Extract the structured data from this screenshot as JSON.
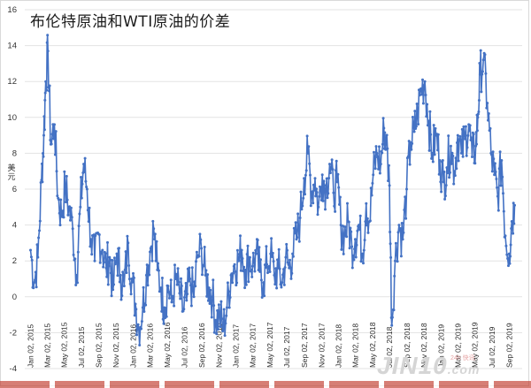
{
  "chart_data": {
    "type": "line",
    "title": "布伦特原油和WTI原油的价差",
    "ylabel": "美元",
    "xlabel": "",
    "ylim": [
      -4,
      16
    ],
    "y_ticks": [
      -4,
      -2,
      0,
      2,
      4,
      6,
      8,
      10,
      12,
      14,
      16
    ],
    "x_tick_labels": [
      "Jan 02, 2015",
      "Mar 02, 2015",
      "May 02, 2015",
      "Jul 02, 2015",
      "Sep 02, 2015",
      "Nov 02, 2015",
      "Jan 02, 2016",
      "Mar 02, 2016",
      "May 02, 2016",
      "Jul 02, 2016",
      "Sep 02, 2016",
      "Nov 02, 2016",
      "Jan 02, 2017",
      "Mar 02, 2017",
      "May 02, 2017",
      "Jul 02, 2017",
      "Sep 02, 2017",
      "Nov 02, 2017",
      "Jan 02, 2018",
      "Mar 02, 2018",
      "May 02, 2018",
      "Jul 02, 2018",
      "Sep 02, 2018",
      "Nov 02, 2018",
      "Jan 02, 2019",
      "Mar 02, 2019",
      "May 02, 2019",
      "Jul 02, 2019",
      "Sep 02, 2019"
    ],
    "grid": true,
    "legend": "none",
    "line_color": "#4472c4",
    "series": [
      {
        "x": [
          "2015-01-02",
          "2015-01-15",
          "2015-01-28",
          "2015-02-10",
          "2015-02-18",
          "2015-02-25",
          "2015-03-05",
          "2015-03-15",
          "2015-03-28",
          "2015-04-10",
          "2015-04-22",
          "2015-05-05",
          "2015-05-18",
          "2015-06-01",
          "2015-06-15",
          "2015-06-28",
          "2015-07-10",
          "2015-07-22",
          "2015-08-05",
          "2015-08-18",
          "2015-09-01",
          "2015-09-15",
          "2015-09-28",
          "2015-10-10",
          "2015-10-22",
          "2015-11-05",
          "2015-11-18",
          "2015-12-01",
          "2015-12-15",
          "2015-12-28",
          "2016-01-10",
          "2016-01-22",
          "2016-02-05",
          "2016-02-18",
          "2016-03-02",
          "2016-03-15",
          "2016-03-28",
          "2016-04-10",
          "2016-04-22",
          "2016-05-05",
          "2016-05-18",
          "2016-06-01",
          "2016-06-15",
          "2016-06-28",
          "2016-07-10",
          "2016-07-22",
          "2016-08-05",
          "2016-08-18",
          "2016-09-01",
          "2016-09-15",
          "2016-09-28",
          "2016-10-10",
          "2016-10-22",
          "2016-11-05",
          "2016-11-18",
          "2016-12-01",
          "2016-12-15",
          "2016-12-28",
          "2017-01-10",
          "2017-01-22",
          "2017-02-05",
          "2017-02-18",
          "2017-03-02",
          "2017-03-15",
          "2017-03-28",
          "2017-04-10",
          "2017-04-22",
          "2017-05-05",
          "2017-05-18",
          "2017-06-01",
          "2017-06-15",
          "2017-06-28",
          "2017-07-10",
          "2017-07-22",
          "2017-08-05",
          "2017-08-18",
          "2017-09-01",
          "2017-09-15",
          "2017-09-28",
          "2017-10-10",
          "2017-10-22",
          "2017-11-05",
          "2017-11-18",
          "2017-12-01",
          "2017-12-15",
          "2017-12-28",
          "2018-01-10",
          "2018-01-22",
          "2018-02-05",
          "2018-02-18",
          "2018-03-02",
          "2018-03-15",
          "2018-03-28",
          "2018-04-10",
          "2018-04-22",
          "2018-05-05",
          "2018-05-18",
          "2018-06-01",
          "2018-06-12",
          "2018-06-20",
          "2018-07-02",
          "2018-07-10",
          "2018-07-22",
          "2018-08-05",
          "2018-08-18",
          "2018-09-01",
          "2018-09-15",
          "2018-09-28",
          "2018-10-10",
          "2018-10-22",
          "2018-11-05",
          "2018-11-18",
          "2018-12-01",
          "2018-12-15",
          "2018-12-28",
          "2019-01-10",
          "2019-01-22",
          "2019-02-05",
          "2019-02-18",
          "2019-03-02",
          "2019-03-15",
          "2019-03-28",
          "2019-04-10",
          "2019-04-22",
          "2019-05-05",
          "2019-05-12",
          "2019-05-20",
          "2019-06-01",
          "2019-06-15",
          "2019-06-28",
          "2019-07-10",
          "2019-07-22",
          "2019-08-05",
          "2019-08-18",
          "2019-09-01",
          "2019-09-10",
          "2019-09-20"
        ],
        "values": [
          2.6,
          0.8,
          2.2,
          6.5,
          9.0,
          12.0,
          13.7,
          8.5,
          9.6,
          5.5,
          4.5,
          6.2,
          5.0,
          3.8,
          1.2,
          5.0,
          7.4,
          6.0,
          3.2,
          2.0,
          3.5,
          2.6,
          1.6,
          2.2,
          0.4,
          2.4,
          1.2,
          0.6,
          3.0,
          1.0,
          -0.4,
          -1.8,
          -0.6,
          1.2,
          2.5,
          3.8,
          1.5,
          0.5,
          -0.6,
          0.6,
          -0.3,
          1.0,
          0.2,
          -0.8,
          -0.2,
          1.0,
          0.0,
          2.2,
          2.7,
          1.2,
          0.5,
          0.0,
          -1.3,
          -1.0,
          -1.8,
          -0.6,
          1.2,
          1.8,
          2.0,
          2.6,
          1.5,
          2.2,
          1.7,
          2.4,
          1.4,
          0.8,
          1.8,
          2.4,
          1.2,
          1.6,
          0.8,
          2.2,
          1.6,
          2.4,
          3.2,
          4.4,
          6.6,
          8.0,
          5.8,
          6.6,
          5.0,
          6.8,
          6.0,
          7.4,
          5.8,
          6.4,
          4.0,
          3.4,
          4.2,
          2.8,
          3.2,
          4.0,
          2.4,
          5.2,
          4.2,
          6.8,
          8.0,
          7.4,
          9.4,
          8.8,
          6.2,
          -1.6,
          2.0,
          4.0,
          3.2,
          6.0,
          8.6,
          9.2,
          10.2,
          11.6,
          12.0,
          9.8,
          8.0,
          9.0,
          7.6,
          6.4,
          7.2,
          8.4,
          7.0,
          9.0,
          8.0,
          8.8,
          9.6,
          7.8,
          8.4,
          10.0,
          12.4,
          13.2,
          10.8,
          8.0,
          6.8,
          5.6,
          7.6,
          3.4,
          2.4,
          4.2,
          5.1
        ]
      }
    ]
  },
  "watermark": {
    "brand": "JIN10",
    "suffix": ".com",
    "sub": "24h 快讯"
  }
}
